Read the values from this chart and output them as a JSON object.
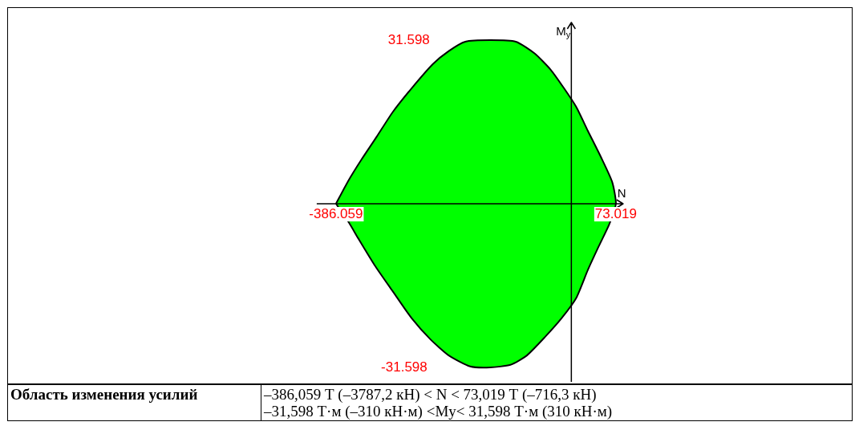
{
  "chart_data": {
    "type": "area",
    "xlabel": "N",
    "ylabel": "M$_{y}$",
    "xlim": [
      -924,
      460
    ],
    "ylim": [
      -34.7,
      37.8
    ],
    "xticks": [
      -386.059,
      73.019
    ],
    "yticks": [
      -31.598,
      31.598
    ],
    "grid": false,
    "legend": false,
    "marker": "none",
    "line_style": "solid",
    "series": [
      {
        "color": "#00ff00",
        "x": [
          -386.059,
          -367,
          -345,
          -319,
          -293,
          -262,
          -227,
          -201,
          -174,
          -133,
          -91,
          -60,
          -34,
          -12,
          8,
          27,
          49,
          67,
          73.019,
          62,
          45,
          27,
          8,
          -16,
          -43,
          -73,
          -100,
          -133,
          -166,
          -201,
          -231,
          -262,
          -293,
          -323,
          -350,
          -365
        ],
        "values": [
          0,
          4.2,
          8.4,
          13.0,
          17.7,
          22.3,
          27.0,
          29.5,
          31.3,
          31.598,
          31.3,
          29.0,
          25.9,
          22.3,
          18.7,
          14.1,
          8.9,
          4.2,
          0,
          -4.0,
          -8.2,
          -12.8,
          -18.2,
          -22.1,
          -25.7,
          -29.3,
          -31.1,
          -31.598,
          -31.4,
          -29.3,
          -26.2,
          -22.1,
          -16.9,
          -11.8,
          -6.6,
          -3.6
        ]
      }
    ],
    "annotations": [
      "Область изменения усилий",
      "–386,059 Т (–3787,2 кН) < N < 73,019 Т (–716,3 кН)",
      "–31,598 Т·м (–310 кН·м) <My< 31,598 Т·м (310 кН·м)"
    ]
  }
}
